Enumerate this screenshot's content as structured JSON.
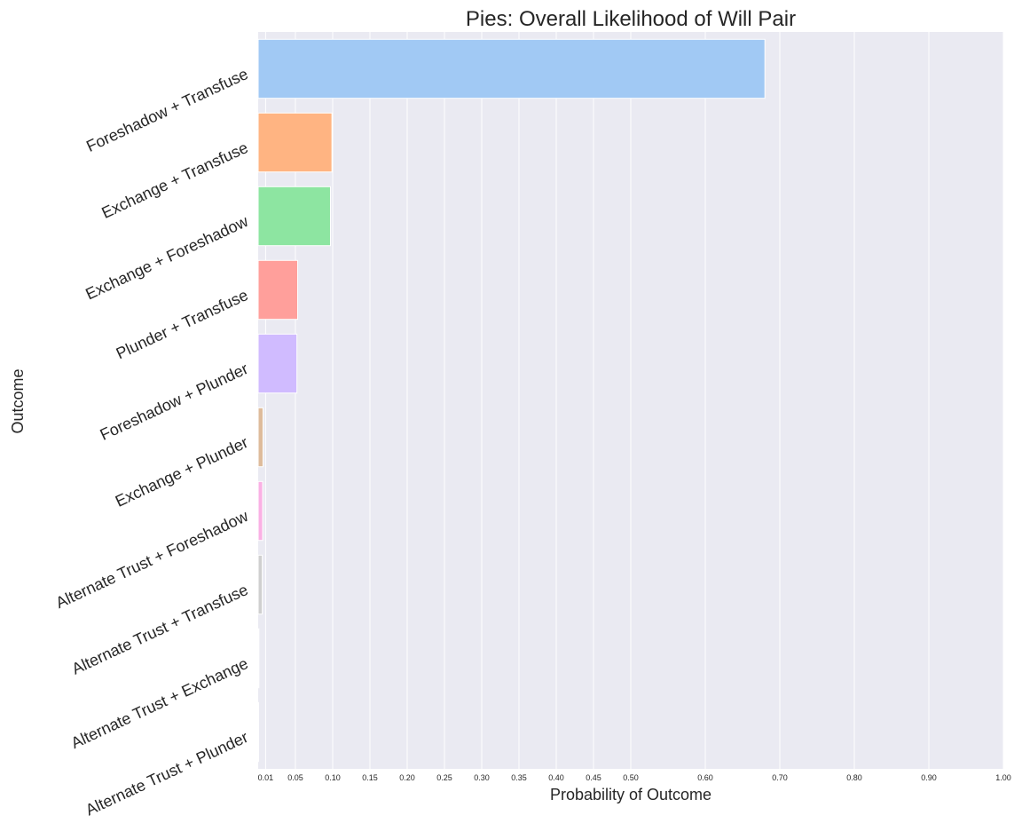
{
  "chart_data": {
    "type": "bar",
    "orientation": "horizontal",
    "title": "Pies: Overall Likelihood of Will Pair",
    "xlabel": "Probability of Outcome",
    "ylabel": "Outcome",
    "xlim": [
      0.0,
      1.0
    ],
    "xticks": [
      0.01,
      0.05,
      0.1,
      0.15,
      0.2,
      0.25,
      0.3,
      0.35,
      0.4,
      0.45,
      0.5,
      0.6,
      0.7,
      0.8,
      0.9,
      1.0
    ],
    "xtick_labels": [
      "0.01",
      "0.05",
      "0.10",
      "0.15",
      "0.20",
      "0.25",
      "0.30",
      "0.35",
      "0.40",
      "0.45",
      "0.50",
      "0.60",
      "0.70",
      "0.80",
      "0.90",
      "1.00"
    ],
    "grid": true,
    "background": "#EAEAF2",
    "categories": [
      "Foreshadow + Transfuse",
      "Exchange + Transfuse",
      "Exchange + Foreshadow",
      "Plunder + Transfuse",
      "Foreshadow + Plunder",
      "Exchange + Plunder",
      "Alternate Trust + Foreshadow",
      "Alternate Trust + Transfuse",
      "Alternate Trust + Exchange",
      "Alternate Trust + Plunder"
    ],
    "values": [
      0.68,
      0.099,
      0.097,
      0.053,
      0.052,
      0.0065,
      0.006,
      0.0055,
      0.001,
      0.0005
    ],
    "colors": [
      "#A1C9F4",
      "#FFB482",
      "#8DE5A1",
      "#FF9F9B",
      "#D0BBFF",
      "#DEBB9B",
      "#FAB0E4",
      "#CFCFCF",
      "#FFFEA3",
      "#B9F2F0"
    ]
  }
}
